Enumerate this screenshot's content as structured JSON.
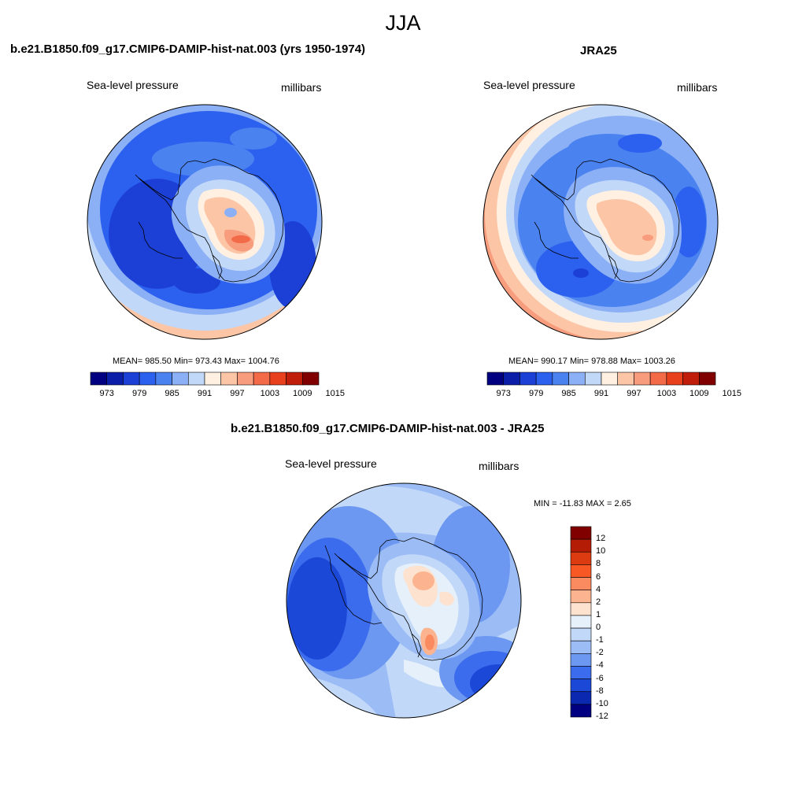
{
  "figure": {
    "title": "JJA"
  },
  "panels": {
    "model": {
      "title": "b.e21.B1850.f09_g17.CMIP6-DAMIP-hist-nat.003 (yrs 1950-1974)",
      "left_label": "Sea-level pressure",
      "right_label": "millibars",
      "stats": "MEAN= 985.50  Min= 973.43  Max= 1004.76",
      "colorbar_ticks": [
        "973",
        "979",
        "985",
        "991",
        "997",
        "1003",
        "1009",
        "1015"
      ]
    },
    "obs": {
      "title": "JRA25",
      "left_label": "Sea-level pressure",
      "right_label": "millibars",
      "stats": "MEAN= 990.17  Min= 978.88  Max= 1003.26",
      "colorbar_ticks": [
        "973",
        "979",
        "985",
        "991",
        "997",
        "1003",
        "1009",
        "1015"
      ]
    },
    "diff": {
      "title": "b.e21.B1850.f09_g17.CMIP6-DAMIP-hist-nat.003 - JRA25",
      "left_label": "Sea-level pressure",
      "right_label": "millibars",
      "stats": "MIN = -11.83 MAX =   2.65",
      "colorbar_ticks": [
        "12",
        "10",
        "8",
        "6",
        "4",
        "2",
        "1",
        "0",
        "-1",
        "-2",
        "-4",
        "-6",
        "-8",
        "-10",
        "-12"
      ]
    }
  },
  "palettes": {
    "abs_colorbar": [
      "#000080",
      "#0a1ea8",
      "#1c40d6",
      "#2c60ee",
      "#4a82f0",
      "#8cb0f6",
      "#c2d8f8",
      "#fff0e2",
      "#fcc6a6",
      "#f89c7e",
      "#f26a48",
      "#e8401c",
      "#c01e0a",
      "#800000"
    ],
    "diff_colorbar": [
      "#800000",
      "#b41c06",
      "#dc3a10",
      "#f85824",
      "#fa8a60",
      "#fcb490",
      "#fde2d0",
      "#e6f0fa",
      "#c2d8f8",
      "#9cbcf6",
      "#6c98f2",
      "#3c6cee",
      "#1c48d8",
      "#0a28b0",
      "#000080"
    ]
  }
}
